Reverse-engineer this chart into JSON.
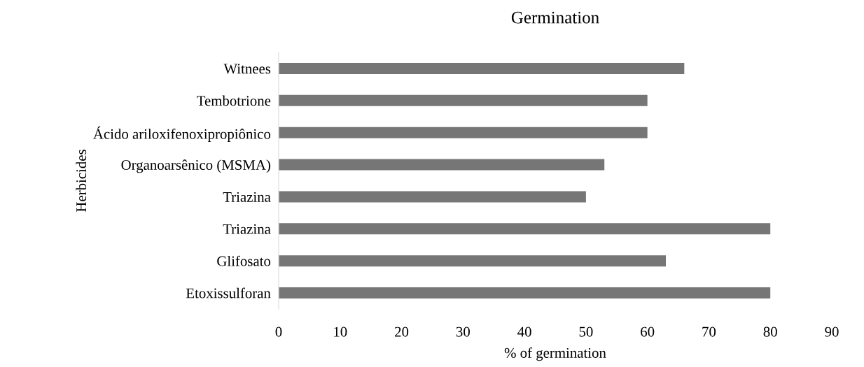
{
  "chart_data": {
    "type": "bar",
    "orientation": "horizontal",
    "title": "Germination",
    "xlabel": "% of germination",
    "ylabel": "Herbicides",
    "categories": [
      "Witnees",
      "Tembotrione",
      "Ácido ariloxifenoxipropiônico",
      "Organoarsênico (MSMA)",
      "Triazina",
      "Triazina",
      "Glifosato",
      "Etoxissulforan"
    ],
    "values": [
      66,
      60,
      60,
      53,
      50,
      80,
      63,
      80
    ],
    "color": "#767676",
    "xlim": [
      0,
      90
    ],
    "xticks": [
      0,
      10,
      20,
      30,
      40,
      50,
      60,
      70,
      80,
      90
    ],
    "grid": false,
    "legend": false
  }
}
